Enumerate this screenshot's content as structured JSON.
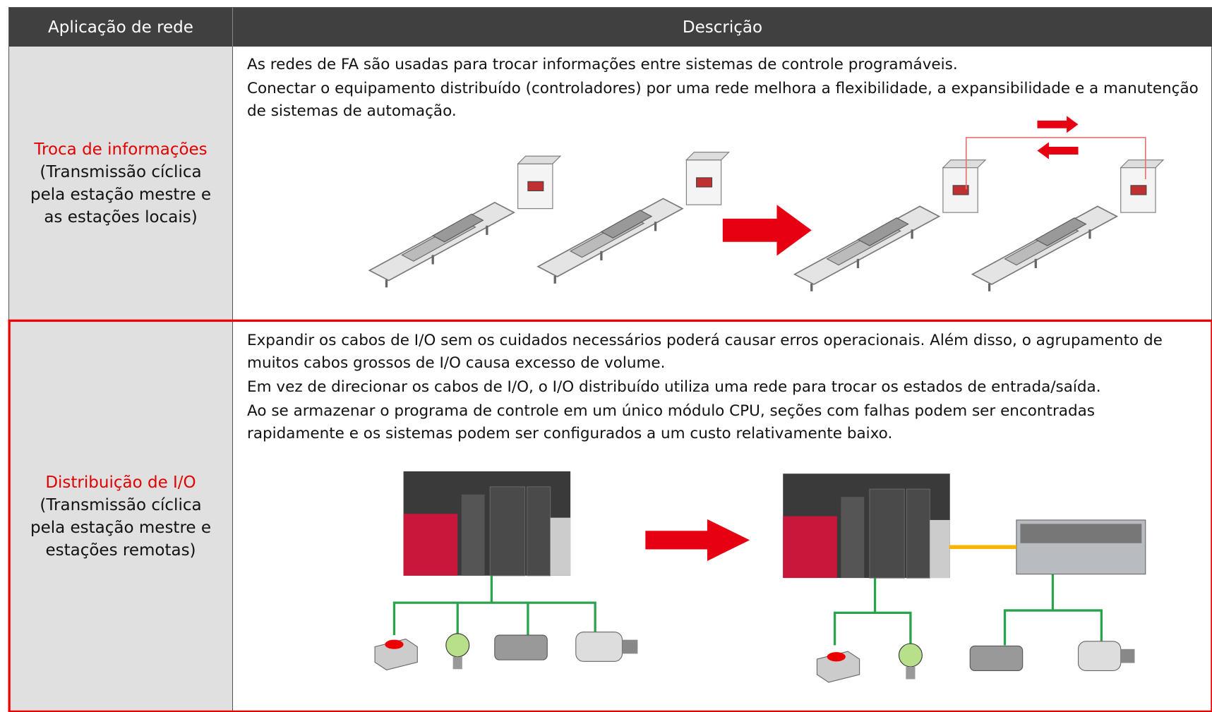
{
  "table": {
    "header": [
      "Aplicação de rede",
      "Descrição"
    ],
    "rows": [
      {
        "name": "Troca de informações",
        "detail": "(Transmissão cíclica pela estação mestre e as estações locais)",
        "description": [
          "As redes de FA são usadas para trocar informações entre sistemas de controle programáveis.",
          "Conectar o equipamento distribuído (controladores) por uma rede melhora a flexibilidade, a expansibilidade e a manutenção de sistemas de automação."
        ]
      },
      {
        "name": "Distribuição de I/O",
        "detail": "(Transmissão cíclica pela estação mestre e estações remotas)",
        "description": [
          "Expandir os cabos de I/O sem os cuidados necessários poderá causar erros operacionais. Além disso, o agrupamento de muitos cabos grossos de I/O causa excesso de volume.",
          "Em vez de direcionar os cabos de I/O, o I/O distribuído utiliza uma rede para trocar os estados de entrada/saída.",
          "Ao se armazenar o programa de controle em um único módulo CPU, seções com falhas podem ser encontradas rapidamente e os sistemas podem ser configurados a um custo relativamente baixo."
        ]
      }
    ]
  }
}
